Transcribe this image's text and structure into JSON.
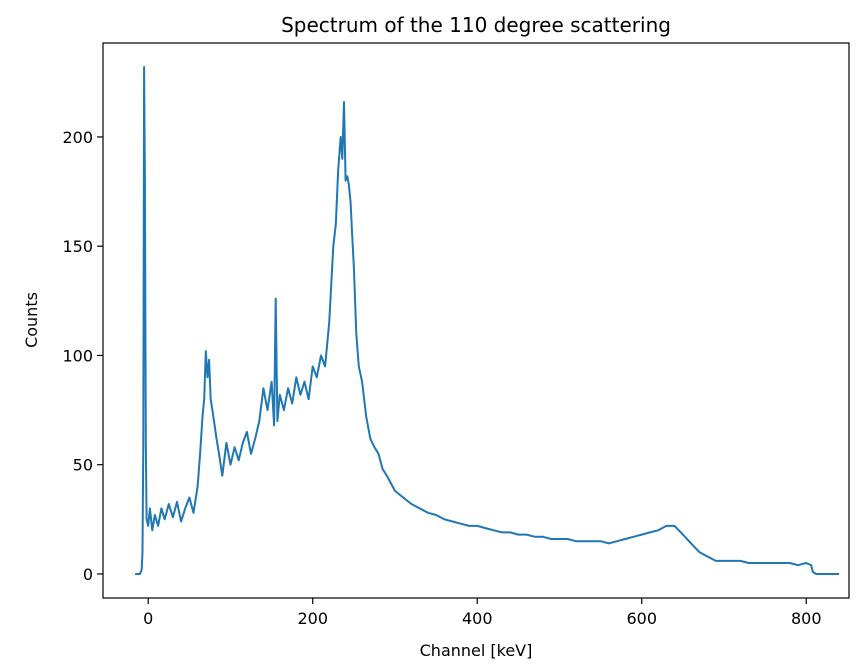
{
  "chart_data": {
    "type": "line",
    "title": "Spectrum of the 110 degree scattering",
    "xlabel": "Channel [keV]",
    "ylabel": "Counts",
    "xlim": [
      -55,
      852
    ],
    "ylim": [
      -11,
      243
    ],
    "xticks": [
      0,
      200,
      400,
      600,
      800
    ],
    "yticks": [
      0,
      50,
      100,
      150,
      200
    ],
    "grid": false,
    "series": [
      {
        "color": "#1f77b4",
        "x": [
          -16,
          -10,
          -8,
          -7,
          -6,
          -5,
          -4,
          -3,
          -2,
          0,
          2,
          5,
          8,
          12,
          16,
          20,
          25,
          30,
          35,
          40,
          45,
          50,
          55,
          60,
          63,
          66,
          68,
          70,
          72,
          74,
          76,
          78,
          80,
          83,
          86,
          90,
          95,
          100,
          105,
          110,
          115,
          120,
          125,
          130,
          135,
          140,
          145,
          150,
          153,
          155,
          157,
          160,
          165,
          170,
          175,
          180,
          185,
          190,
          195,
          200,
          205,
          210,
          215,
          220,
          225,
          228,
          231,
          234,
          236,
          238,
          240,
          242,
          244,
          246,
          248,
          250,
          253,
          256,
          260,
          265,
          270,
          275,
          280,
          285,
          290,
          300,
          310,
          320,
          330,
          340,
          350,
          360,
          370,
          380,
          390,
          400,
          410,
          420,
          430,
          440,
          450,
          460,
          470,
          480,
          490,
          500,
          510,
          520,
          530,
          540,
          550,
          560,
          570,
          580,
          590,
          600,
          610,
          620,
          630,
          640,
          650,
          660,
          670,
          680,
          690,
          700,
          710,
          720,
          730,
          740,
          750,
          760,
          770,
          780,
          790,
          800,
          806,
          808,
          812,
          840
        ],
        "y": [
          0,
          0,
          2,
          10,
          60,
          232,
          180,
          60,
          25,
          22,
          30,
          20,
          27,
          22,
          30,
          25,
          32,
          26,
          33,
          24,
          30,
          35,
          28,
          40,
          55,
          72,
          80,
          102,
          90,
          98,
          80,
          75,
          70,
          62,
          55,
          45,
          60,
          50,
          58,
          52,
          60,
          65,
          55,
          62,
          70,
          85,
          75,
          88,
          68,
          126,
          70,
          82,
          75,
          85,
          78,
          90,
          82,
          88,
          80,
          95,
          90,
          100,
          95,
          115,
          150,
          160,
          185,
          200,
          190,
          216,
          180,
          182,
          178,
          170,
          155,
          140,
          110,
          95,
          88,
          72,
          62,
          58,
          55,
          48,
          45,
          38,
          35,
          32,
          30,
          28,
          27,
          25,
          24,
          23,
          22,
          22,
          21,
          20,
          19,
          19,
          18,
          18,
          17,
          17,
          16,
          16,
          16,
          15,
          15,
          15,
          15,
          14,
          15,
          16,
          17,
          18,
          19,
          20,
          22,
          22,
          18,
          14,
          10,
          8,
          6,
          6,
          6,
          6,
          5,
          5,
          5,
          5,
          5,
          5,
          4,
          5,
          4,
          1,
          0,
          0
        ]
      }
    ]
  }
}
